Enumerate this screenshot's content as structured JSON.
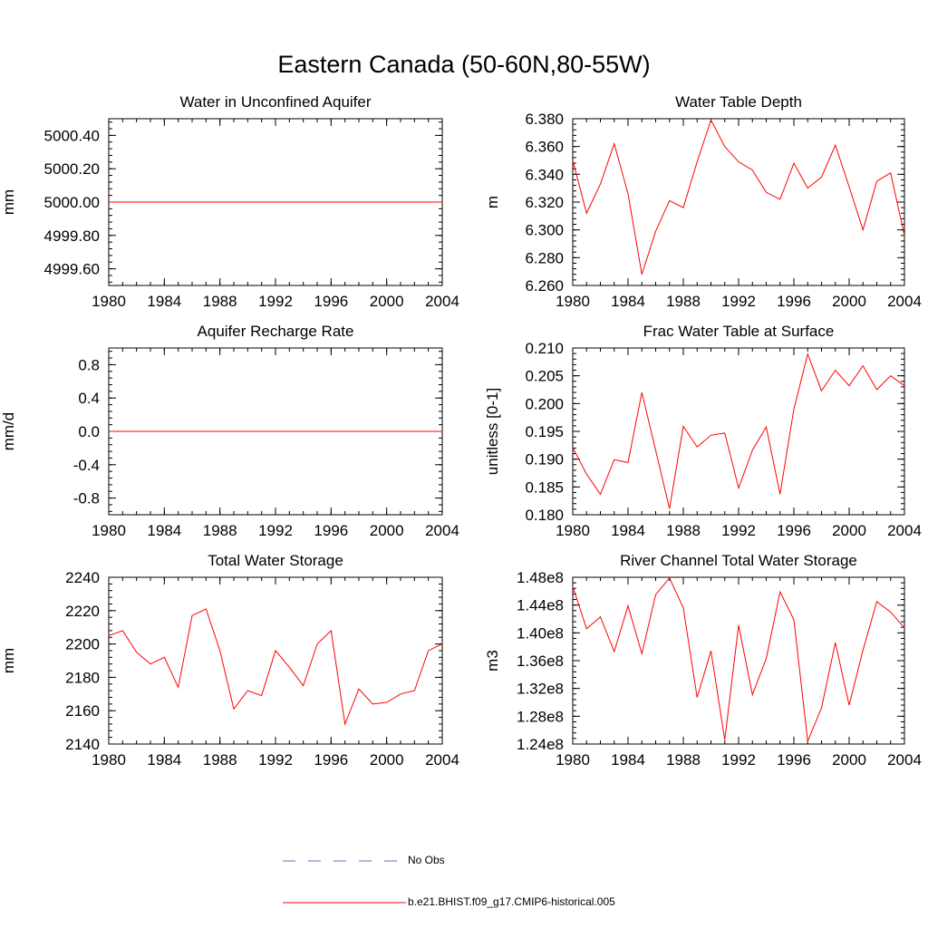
{
  "title": "Eastern Canada (50-60N,80-55W)",
  "legend": [
    {
      "label": "No Obs",
      "color": "#6a6ab4",
      "style": "dashed"
    },
    {
      "label": "b.e21.BHIST.f09_g17.CMIP6-historical.005",
      "color": "#ff0000",
      "style": "solid"
    }
  ],
  "chart_data": [
    {
      "type": "line",
      "title": "Water in Unconfined Aquifer",
      "ylabel": "mm",
      "xlim": [
        1980,
        2004
      ],
      "ylim": [
        4999.5,
        5000.5
      ],
      "xticks": [
        "1980",
        "1984",
        "1988",
        "1992",
        "1996",
        "2000",
        "2004"
      ],
      "yticks": [
        "4999.60",
        "4999.80",
        "5000.00",
        "5000.20",
        "5000.40"
      ],
      "series": [
        {
          "name": "b.e21.BHIST.f09_g17.CMIP6-historical.005",
          "x": [
            1980,
            2004
          ],
          "y": [
            5000.0,
            5000.0
          ]
        }
      ]
    },
    {
      "type": "line",
      "title": "Water Table Depth",
      "ylabel": "m",
      "xlim": [
        1980,
        2004
      ],
      "ylim": [
        6.26,
        6.38
      ],
      "xticks": [
        "1980",
        "1984",
        "1988",
        "1992",
        "1996",
        "2000",
        "2004"
      ],
      "yticks": [
        "6.260",
        "6.280",
        "6.300",
        "6.320",
        "6.340",
        "6.360",
        "6.380"
      ],
      "series": [
        {
          "name": "b.e21.BHIST.f09_g17.CMIP6-historical.005",
          "x": [
            1980,
            1981,
            1982,
            1983,
            1984,
            1985,
            1986,
            1987,
            1988,
            1989,
            1990,
            1991,
            1992,
            1993,
            1994,
            1995,
            1996,
            1997,
            1998,
            1999,
            2000,
            2001,
            2002,
            2003,
            2004
          ],
          "y": [
            6.35,
            6.312,
            6.333,
            6.362,
            6.326,
            6.268,
            6.299,
            6.321,
            6.316,
            6.349,
            6.379,
            6.36,
            6.349,
            6.343,
            6.327,
            6.322,
            6.348,
            6.33,
            6.338,
            6.361,
            6.331,
            6.3,
            6.335,
            6.341,
            6.296
          ]
        }
      ]
    },
    {
      "type": "line",
      "title": "Aquifer Recharge Rate",
      "ylabel": "mm/d",
      "xlim": [
        1980,
        2004
      ],
      "ylim": [
        -1.0,
        1.0
      ],
      "xticks": [
        "1980",
        "1984",
        "1988",
        "1992",
        "1996",
        "2000",
        "2004"
      ],
      "yticks": [
        "-0.8",
        "-0.4",
        "0.0",
        "0.4",
        "0.8"
      ],
      "series": [
        {
          "name": "b.e21.BHIST.f09_g17.CMIP6-historical.005",
          "x": [
            1980,
            2004
          ],
          "y": [
            0.0,
            0.0
          ]
        }
      ]
    },
    {
      "type": "line",
      "title": "Frac Water Table at Surface",
      "ylabel": "unitless [0-1]",
      "xlim": [
        1980,
        2004
      ],
      "ylim": [
        0.18,
        0.21
      ],
      "xticks": [
        "1980",
        "1984",
        "1988",
        "1992",
        "1996",
        "2000",
        "2004"
      ],
      "yticks": [
        "0.180",
        "0.185",
        "0.190",
        "0.195",
        "0.200",
        "0.205",
        "0.210"
      ],
      "series": [
        {
          "name": "b.e21.BHIST.f09_g17.CMIP6-historical.005",
          "x": [
            1980,
            1981,
            1982,
            1983,
            1984,
            1985,
            1986,
            1987,
            1988,
            1989,
            1990,
            1991,
            1992,
            1993,
            1994,
            1995,
            1996,
            1997,
            1998,
            1999,
            2000,
            2001,
            2002,
            2003,
            2004
          ],
          "y": [
            0.1921,
            0.1873,
            0.1837,
            0.1899,
            0.1894,
            0.202,
            0.1916,
            0.1811,
            0.1959,
            0.1922,
            0.1943,
            0.1947,
            0.1848,
            0.1916,
            0.1958,
            0.1837,
            0.199,
            0.2089,
            0.2023,
            0.206,
            0.2032,
            0.2068,
            0.2025,
            0.205,
            0.2032
          ]
        }
      ]
    },
    {
      "type": "line",
      "title": "Total Water Storage",
      "ylabel": "mm",
      "xlim": [
        1980,
        2004
      ],
      "ylim": [
        2140,
        2240
      ],
      "xticks": [
        "1980",
        "1984",
        "1988",
        "1992",
        "1996",
        "2000",
        "2004"
      ],
      "yticks": [
        "2140",
        "2160",
        "2180",
        "2200",
        "2220",
        "2240"
      ],
      "series": [
        {
          "name": "b.e21.BHIST.f09_g17.CMIP6-historical.005",
          "x": [
            1980,
            1981,
            1982,
            1983,
            1984,
            1985,
            1986,
            1987,
            1988,
            1989,
            1990,
            1991,
            1992,
            1993,
            1994,
            1995,
            1996,
            1997,
            1998,
            1999,
            2000,
            2001,
            2002,
            2003,
            2004
          ],
          "y": [
            2205,
            2208,
            2195,
            2188,
            2192,
            2174,
            2217,
            2221,
            2196,
            2161,
            2172,
            2169,
            2196,
            2186,
            2175,
            2200,
            2208,
            2152,
            2173,
            2164,
            2165,
            2170,
            2172,
            2196,
            2200
          ]
        }
      ]
    },
    {
      "type": "line",
      "title": "River Channel Total Water Storage",
      "ylabel": "m3",
      "xlim": [
        1980,
        2004
      ],
      "ylim": [
        124000000,
        148000000
      ],
      "xticks": [
        "1980",
        "1984",
        "1988",
        "1992",
        "1996",
        "2000",
        "2004"
      ],
      "yticks": [
        "1.24e8",
        "1.28e8",
        "1.32e8",
        "1.36e8",
        "1.40e8",
        "1.44e8",
        "1.48e8"
      ],
      "series": [
        {
          "name": "b.e21.BHIST.f09_g17.CMIP6-historical.005",
          "x": [
            1980,
            1981,
            1982,
            1983,
            1984,
            1985,
            1986,
            1987,
            1988,
            1989,
            1990,
            1991,
            1992,
            1993,
            1994,
            1995,
            1996,
            1997,
            1998,
            1999,
            2000,
            2001,
            2002,
            2003,
            2004
          ],
          "y": [
            146700000,
            140600000,
            142300000,
            137300000,
            143900000,
            137000000,
            145500000,
            147900000,
            143600000,
            130700000,
            137400000,
            124600000,
            141100000,
            131100000,
            136300000,
            145900000,
            141900000,
            124400000,
            129200000,
            138600000,
            129600000,
            137500000,
            144500000,
            143000000,
            140700000
          ]
        }
      ]
    }
  ]
}
